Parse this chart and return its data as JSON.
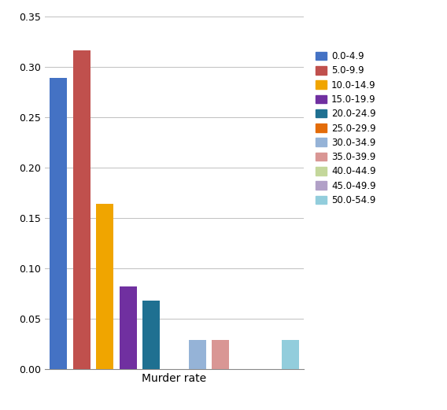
{
  "categories": [
    "0.0-4.9",
    "5.0-9.9",
    "10.0-14.9",
    "15.0-19.9",
    "20.0-24.9",
    "25.0-29.9",
    "30.0-34.9",
    "35.0-39.9",
    "40.0-44.9",
    "45.0-49.9",
    "50.0-54.9"
  ],
  "values": [
    0.289,
    0.316,
    0.164,
    0.082,
    0.068,
    0.0,
    0.029,
    0.029,
    0.0,
    0.0,
    0.029
  ],
  "colors": [
    "#4472C4",
    "#C0504D",
    "#F0A500",
    "#7030A0",
    "#1F7091",
    "#E36C09",
    "#95B3D7",
    "#D99694",
    "#C4D79B",
    "#B1A0C7",
    "#92CDDC"
  ],
  "legend_labels": [
    "0.0-4.9",
    "5.0-9.9",
    "10.0-14.9",
    "15.0-19.9",
    "20.0-24.9",
    "25.0-29.9",
    "30.0-34.9",
    "35.0-39.9",
    "40.0-44.9",
    "45.0-49.9",
    "50.0-54.9"
  ],
  "xlabel": "Murder rate",
  "ylim": [
    0,
    0.35
  ],
  "yticks": [
    0,
    0.05,
    0.1,
    0.15,
    0.2,
    0.25,
    0.3,
    0.35
  ],
  "grid_color": "#C0C0C0",
  "figsize": [
    5.68,
    5.21
  ],
  "dpi": 100
}
